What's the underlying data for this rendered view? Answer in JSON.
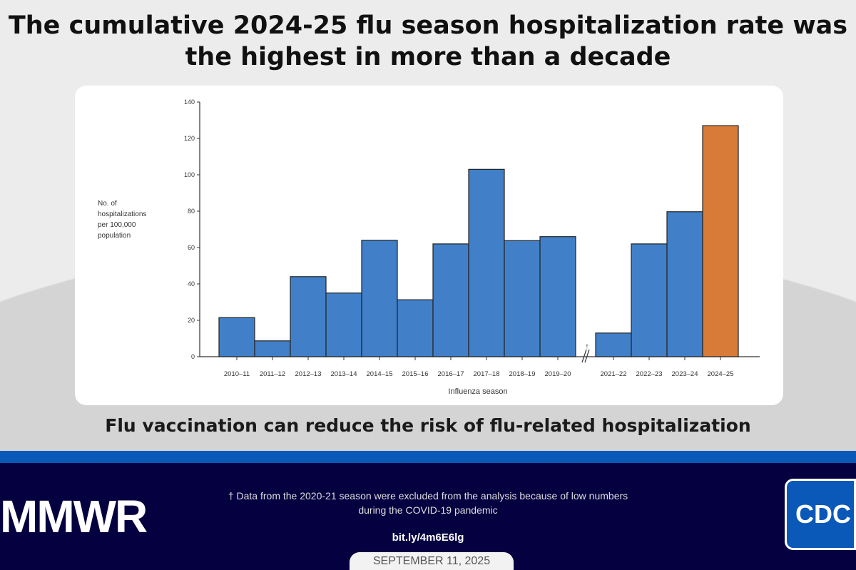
{
  "title": "The cumulative 2024-25 flu season hospitalization rate was the highest in more than a decade",
  "subtitle": "Flu vaccination can reduce the risk of flu-related hospitalization",
  "footer": {
    "logo_left": "MMWR",
    "note": "† Data from the 2020-21 season were excluded from the analysis because of low numbers during the COVID-19 pandemic",
    "link": "bit.ly/4m6E6lg",
    "date": "SEPTEMBER 11, 2025",
    "logo_right": "CDC"
  },
  "colors": {
    "bar": "#4180c8",
    "highlight": "#d97b38",
    "stripe": "#0a58b8",
    "footer": "#05003f"
  },
  "chart_data": {
    "type": "bar",
    "title": "",
    "xlabel": "Influenza season",
    "ylabel": "No. of hospitalizations per 100,000 population",
    "ylim": [
      0,
      140
    ],
    "yticks": [
      0,
      20,
      40,
      60,
      80,
      100,
      120,
      140
    ],
    "categories": [
      "2010–11",
      "2011–12",
      "2012–13",
      "2013–14",
      "2014–15",
      "2015–16",
      "2016–17",
      "2017–18",
      "2018–19",
      "2019–20",
      "2021–22",
      "2022–23",
      "2023–24",
      "2024–25"
    ],
    "values": [
      21.5,
      8.7,
      44,
      35,
      64,
      31.3,
      62,
      103,
      63.8,
      66,
      13,
      62,
      79.7,
      127
    ],
    "highlight": "2024–25",
    "axis_break_after": "2019–20",
    "axis_break_mark": "†",
    "grid": false,
    "legend": "none"
  }
}
